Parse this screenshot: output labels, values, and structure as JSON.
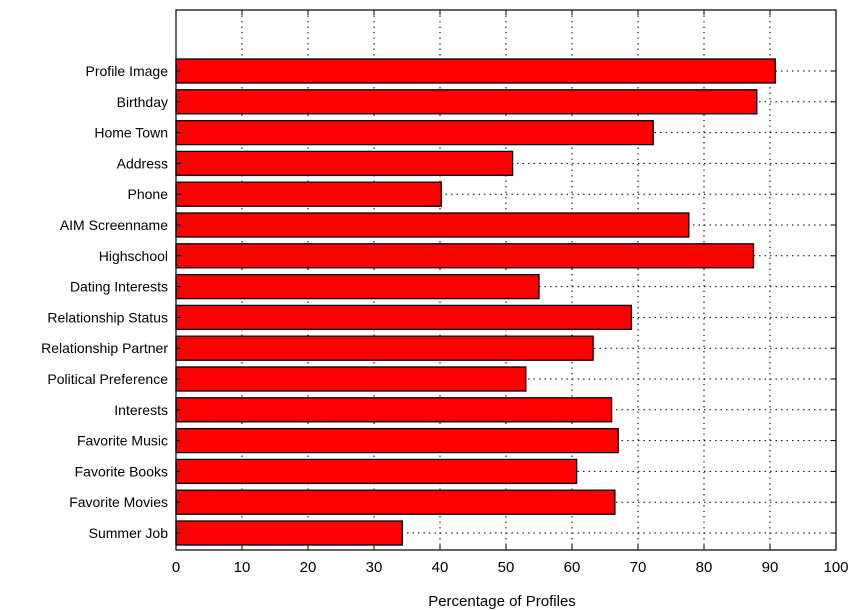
{
  "chart_data": {
    "type": "bar",
    "orientation": "horizontal",
    "title": "",
    "xlabel": "Percentage of Profiles",
    "ylabel": "",
    "xlim": [
      0,
      100
    ],
    "xticks": [
      0,
      10,
      20,
      30,
      40,
      50,
      60,
      70,
      80,
      90,
      100
    ],
    "grid": true,
    "bar_color": "#ff0000",
    "categories": [
      "Profile Image",
      "Birthday",
      "Home Town",
      "Address",
      "Phone",
      "AIM Screenname",
      "Highschool",
      "Dating Interests",
      "Relationship Status",
      "Relationship Partner",
      "Political Preference",
      "Interests",
      "Favorite Music",
      "Favorite Books",
      "Favorite Movies",
      "Summer Job"
    ],
    "values": [
      90.8,
      88,
      72.3,
      51,
      40.2,
      77.7,
      87.5,
      55,
      69,
      63.2,
      53,
      66,
      67,
      60.7,
      66.5,
      34.3
    ]
  }
}
